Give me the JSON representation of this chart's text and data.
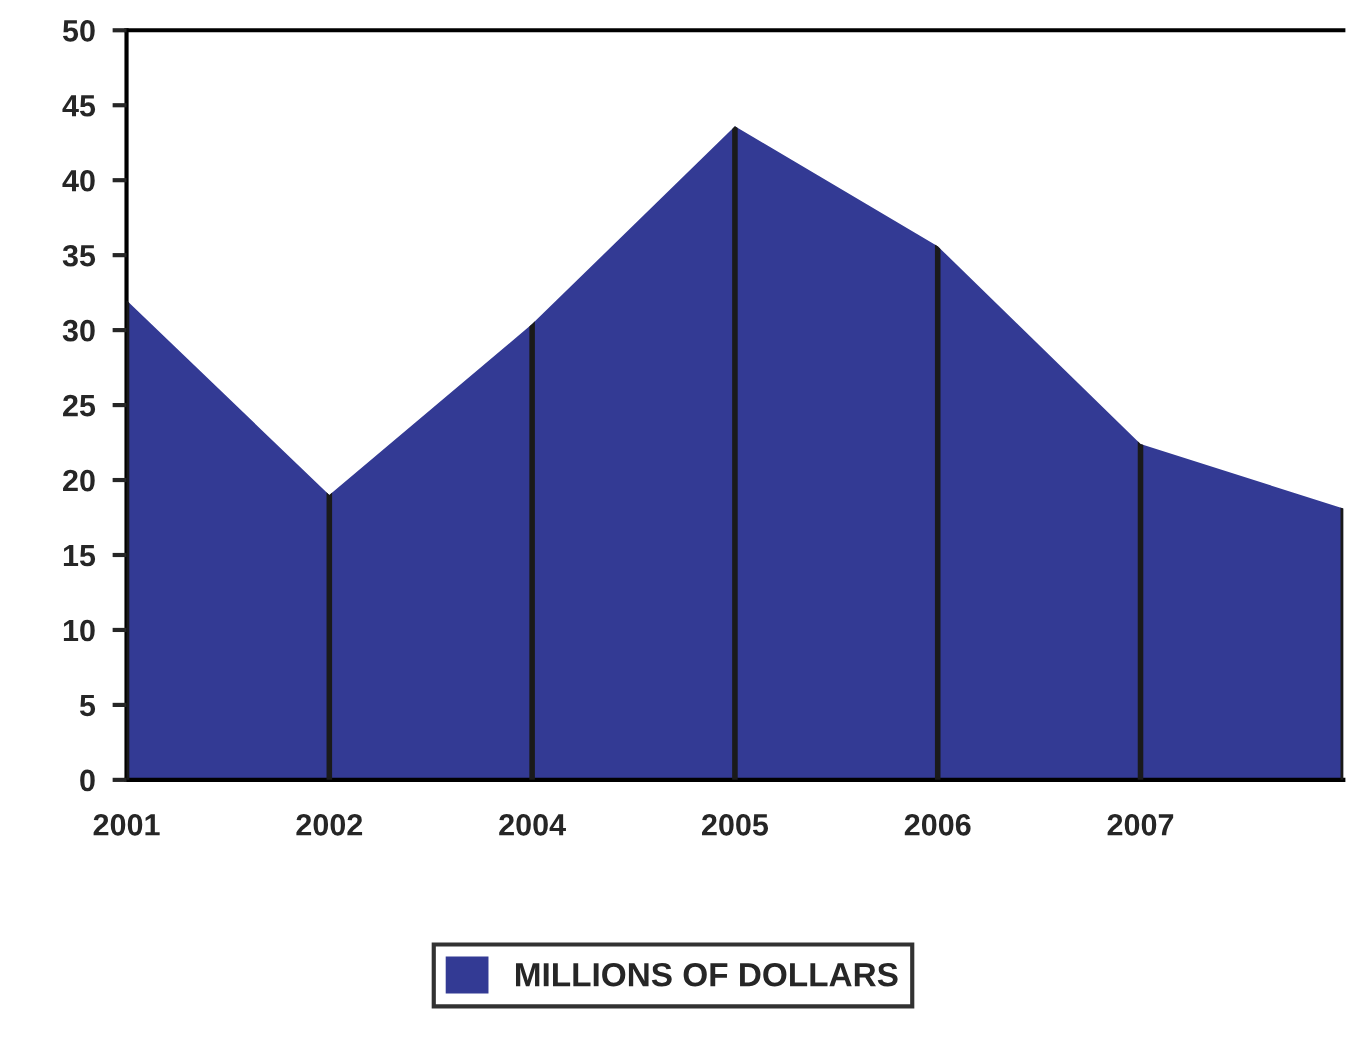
{
  "chart_data": {
    "type": "area",
    "categories": [
      "2001",
      "2002",
      "2004",
      "2005",
      "2006",
      "2007",
      null
    ],
    "series": [
      {
        "name": "MILLIONS OF DOLLARS",
        "color": "#333a94",
        "values": [
          32,
          19,
          30.4,
          43.6,
          35.6,
          22.4,
          18.1
        ]
      }
    ],
    "ylim": [
      0,
      50
    ],
    "yticks": [
      0,
      5,
      10,
      15,
      20,
      25,
      30,
      35,
      40,
      45,
      50
    ],
    "grid": "x",
    "legend": "bottom"
  }
}
